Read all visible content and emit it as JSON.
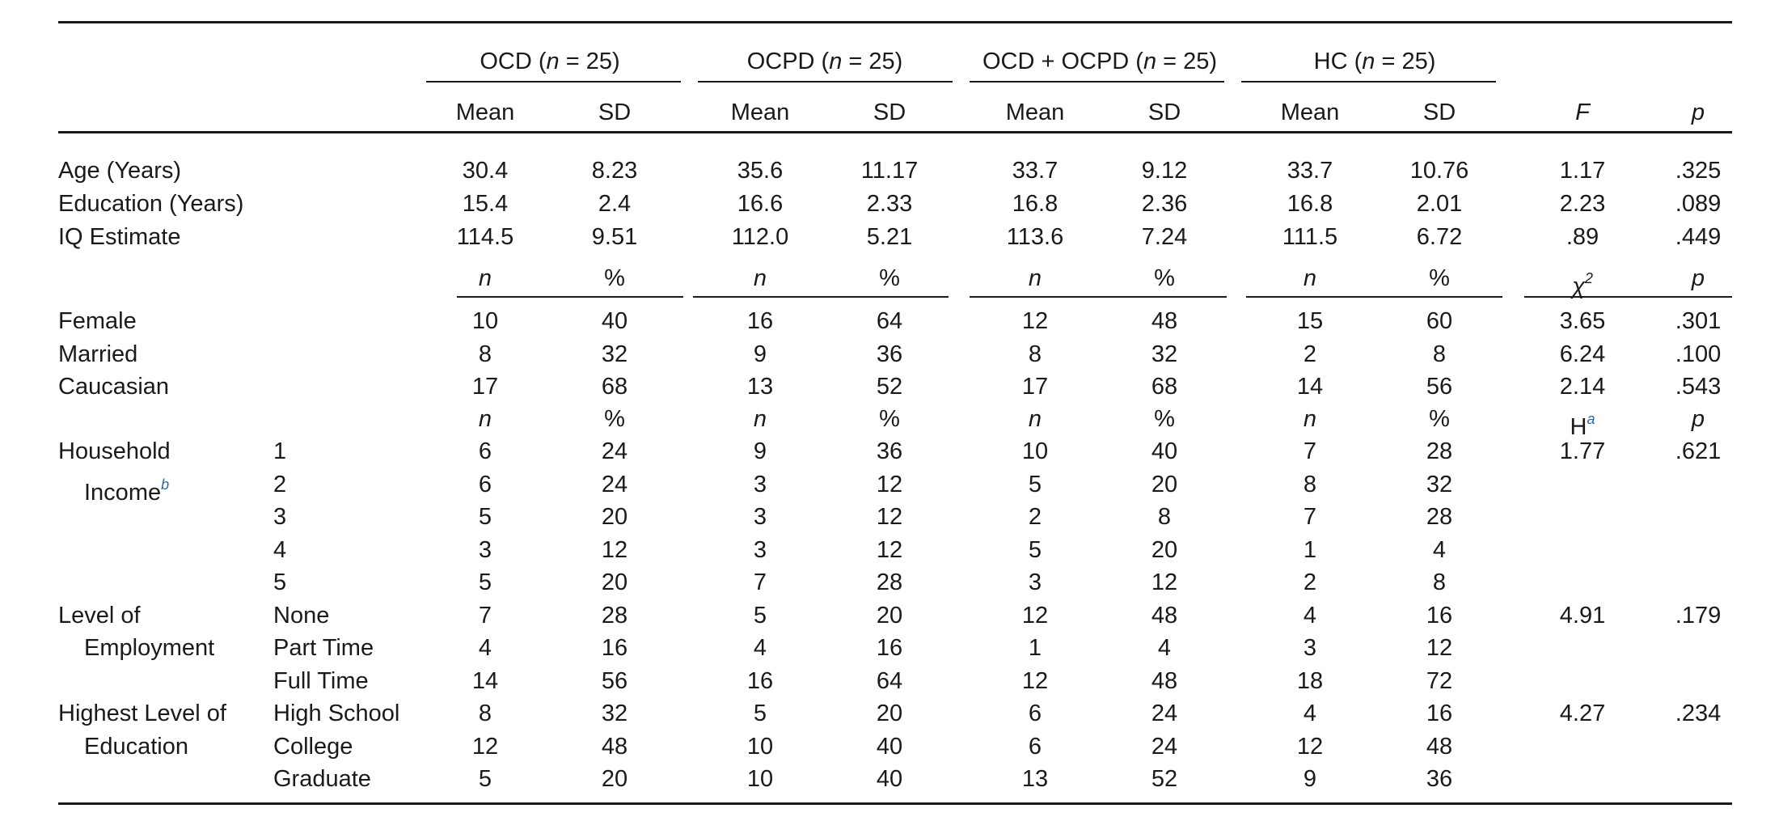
{
  "groups": [
    {
      "name": "OCD",
      "n_label": "n",
      "n_value": " = 25"
    },
    {
      "name": "OCPD",
      "n_label": "n",
      "n_value": " = 25"
    },
    {
      "name": "OCD + OCPD",
      "n_label": "n",
      "n_value": " = 25"
    },
    {
      "name": "HC",
      "n_label": "n",
      "n_value": " = 25"
    }
  ],
  "col_headers": {
    "mean": "Mean",
    "sd": "SD",
    "F": "F",
    "p": "p"
  },
  "continuous": [
    {
      "label": "Age (Years)",
      "values": [
        "30.4",
        "8.23",
        "35.6",
        "11.17",
        "33.7",
        "9.12",
        "33.7",
        "10.76"
      ],
      "stat": "1.17",
      "p": ".325"
    },
    {
      "label": "Education (Years)",
      "values": [
        "15.4",
        "2.4",
        "16.6",
        "2.33",
        "16.8",
        "2.36",
        "16.8",
        "2.01"
      ],
      "stat": "2.23",
      "p": ".089"
    },
    {
      "label": "IQ Estimate",
      "values": [
        "114.5",
        "9.51",
        "112.0",
        "5.21",
        "113.6",
        "7.24",
        "111.5",
        "6.72"
      ],
      "stat": ".89",
      "p": ".449"
    }
  ],
  "subheader_chi": {
    "n": "n",
    "pct": "%",
    "stat": "χ",
    "stat_sup": "2",
    "p": "p"
  },
  "categorical": [
    {
      "label": "Female",
      "values": [
        "10",
        "40",
        "16",
        "64",
        "12",
        "48",
        "15",
        "60"
      ],
      "stat": "3.65",
      "p": ".301"
    },
    {
      "label": "Married",
      "values": [
        "8",
        "32",
        "9",
        "36",
        "8",
        "32",
        "2",
        "8"
      ],
      "stat": "6.24",
      "p": ".100"
    },
    {
      "label": "Caucasian",
      "values": [
        "17",
        "68",
        "13",
        "52",
        "17",
        "68",
        "14",
        "56"
      ],
      "stat": "2.14",
      "p": ".543"
    }
  ],
  "subheader_h": {
    "n": "n",
    "pct": "%",
    "stat": "H",
    "stat_sup": "a",
    "p": "p"
  },
  "ordinal": [
    {
      "label1": "Household",
      "label2": "Income",
      "label2_sup": "b",
      "stat": "1.77",
      "p": ".621",
      "rows": [
        {
          "level": "1",
          "values": [
            "6",
            "24",
            "9",
            "36",
            "10",
            "40",
            "7",
            "28"
          ]
        },
        {
          "level": "2",
          "values": [
            "6",
            "24",
            "3",
            "12",
            "5",
            "20",
            "8",
            "32"
          ]
        },
        {
          "level": "3",
          "values": [
            "5",
            "20",
            "3",
            "12",
            "2",
            "8",
            "7",
            "28"
          ]
        },
        {
          "level": "4",
          "values": [
            "3",
            "12",
            "3",
            "12",
            "5",
            "20",
            "1",
            "4"
          ]
        },
        {
          "level": "5",
          "values": [
            "5",
            "20",
            "7",
            "28",
            "3",
            "12",
            "2",
            "8"
          ]
        }
      ]
    },
    {
      "label1": "Level of",
      "label2": "Employment",
      "label2_sup": "",
      "stat": "4.91",
      "p": ".179",
      "rows": [
        {
          "level": "None",
          "values": [
            "7",
            "28",
            "5",
            "20",
            "12",
            "48",
            "4",
            "16"
          ]
        },
        {
          "level": "Part Time",
          "values": [
            "4",
            "16",
            "4",
            "16",
            "1",
            "4",
            "3",
            "12"
          ]
        },
        {
          "level": "Full Time",
          "values": [
            "14",
            "56",
            "16",
            "64",
            "12",
            "48",
            "18",
            "72"
          ]
        }
      ]
    },
    {
      "label1": "Highest Level of",
      "label2": "Education",
      "label2_sup": "",
      "stat": "4.27",
      "p": ".234",
      "rows": [
        {
          "level": "High School",
          "values": [
            "8",
            "32",
            "5",
            "20",
            "6",
            "24",
            "4",
            "16"
          ]
        },
        {
          "level": "College",
          "values": [
            "12",
            "48",
            "10",
            "40",
            "6",
            "24",
            "12",
            "48"
          ]
        },
        {
          "level": "Graduate",
          "values": [
            "5",
            "20",
            "10",
            "40",
            "13",
            "52",
            "9",
            "36"
          ]
        }
      ]
    }
  ]
}
